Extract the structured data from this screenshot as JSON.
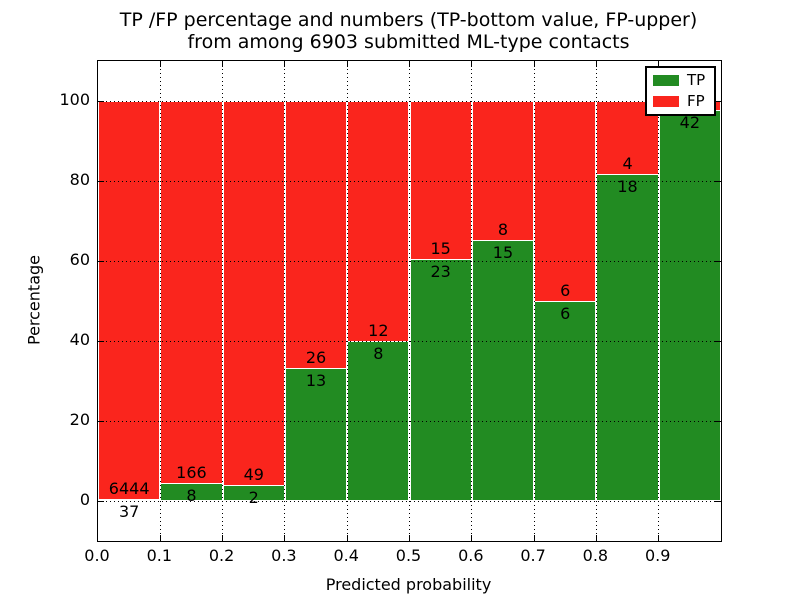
{
  "figure": {
    "title_line1": "TP /FP percentage and numbers (TP-bottom value, FP-upper)",
    "title_line2": "from among 6903 submitted ML-type contacts"
  },
  "axes": {
    "ylabel": "Percentage",
    "xlabel": "Predicted probability",
    "yticks": [
      "100",
      "80",
      "60",
      "40",
      "20",
      "0"
    ],
    "xticks": [
      "0.0",
      "0.1",
      "0.2",
      "0.3",
      "0.4",
      "0.5",
      "0.6",
      "0.7",
      "0.8",
      "0.9"
    ]
  },
  "legend": {
    "items": [
      {
        "label": "TP",
        "color": "#228b22"
      },
      {
        "label": "FP",
        "color": "#fa251d"
      }
    ]
  },
  "colors": {
    "tp": "#228b22",
    "fp": "#fa251d",
    "grid": "#000000",
    "frame": "#000000",
    "background": "#ffffff",
    "text": "#000000"
  },
  "bars": [
    {
      "range": "0.0-0.1",
      "tp_label": "37",
      "fp_label": "6444",
      "tp_pct": 0.571
    },
    {
      "range": "0.1-0.2",
      "tp_label": "8",
      "fp_label": "166",
      "tp_pct": 4.598
    },
    {
      "range": "0.2-0.3",
      "tp_label": "2",
      "fp_label": "49",
      "tp_pct": 3.922
    },
    {
      "range": "0.3-0.4",
      "tp_label": "13",
      "fp_label": "26",
      "tp_pct": 33.333
    },
    {
      "range": "0.4-0.5",
      "tp_label": "8",
      "fp_label": "12",
      "tp_pct": 40.0
    },
    {
      "range": "0.5-0.6",
      "tp_label": "23",
      "fp_label": "15",
      "tp_pct": 60.526
    },
    {
      "range": "0.6-0.7",
      "tp_label": "15",
      "fp_label": "8",
      "tp_pct": 65.217
    },
    {
      "range": "0.7-0.8",
      "tp_label": "6",
      "fp_label": "6",
      "tp_pct": 50.0
    },
    {
      "range": "0.8-0.9",
      "tp_label": "18",
      "fp_label": "4",
      "tp_pct": 81.818
    },
    {
      "range": "0.9-1.0",
      "tp_label": "42",
      "fp_label": "",
      "tp_pct": 97.674
    }
  ],
  "chart_data": {
    "type": "bar",
    "stacked": true,
    "normalized_to_100_percent": true,
    "title": "TP /FP percentage and numbers (TP-bottom value, FP-upper) from among 6903 submitted ML-type contacts",
    "xlabel": "Predicted probability",
    "ylabel": "Percentage",
    "xlim": [
      0.0,
      1.0
    ],
    "ylim": [
      -10,
      110
    ],
    "grid": true,
    "legend_position": "upper right",
    "total_contacts": 6903,
    "bin_edges": [
      0.0,
      0.1,
      0.2,
      0.3,
      0.4,
      0.5,
      0.6,
      0.7,
      0.8,
      0.9,
      1.0
    ],
    "categories": [
      "0.0-0.1",
      "0.1-0.2",
      "0.2-0.3",
      "0.3-0.4",
      "0.4-0.5",
      "0.5-0.6",
      "0.6-0.7",
      "0.7-0.8",
      "0.8-0.9",
      "0.9-1.0"
    ],
    "series": [
      {
        "name": "TP",
        "color": "#228b22",
        "counts": [
          37,
          8,
          2,
          13,
          8,
          23,
          15,
          6,
          18,
          42
        ],
        "percent": [
          0.57,
          4.6,
          3.92,
          33.33,
          40.0,
          60.53,
          65.22,
          50.0,
          81.82,
          97.67
        ]
      },
      {
        "name": "FP",
        "color": "#fa251d",
        "counts": [
          6444,
          166,
          49,
          26,
          12,
          15,
          8,
          6,
          4,
          null
        ],
        "percent": [
          99.43,
          95.4,
          96.08,
          66.67,
          60.0,
          39.47,
          34.78,
          50.0,
          18.18,
          2.33
        ]
      }
    ],
    "notes": "Each bar normalized to 100%. FP count label for the 0.9-1.0 bin is hidden behind the legend."
  }
}
